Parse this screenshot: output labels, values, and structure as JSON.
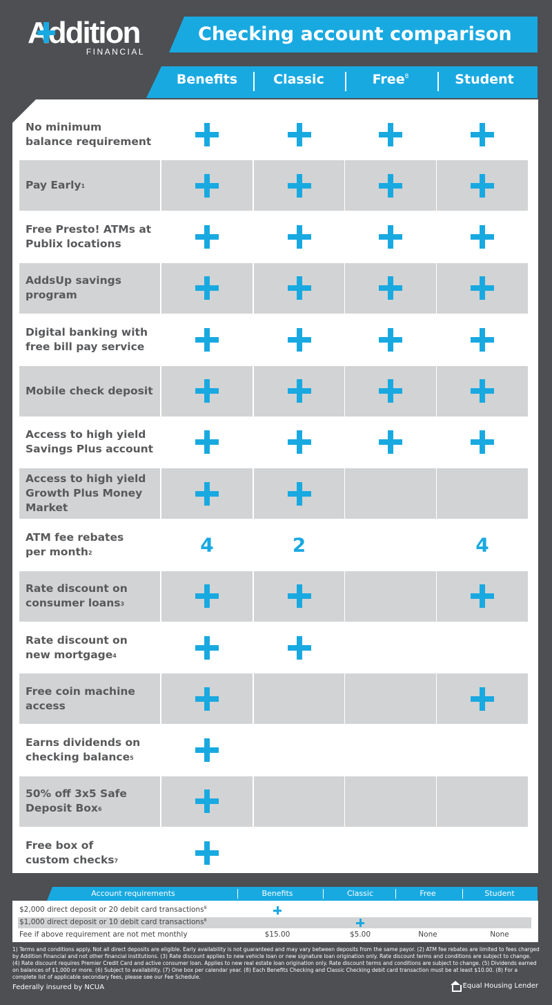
{
  "brand": {
    "logo_text": "Addition",
    "logo_sub": "FINANCIAL",
    "accent_color": "#19a9e1",
    "background_color": "#4d4f53",
    "shade_color": "#d1d3d4"
  },
  "title": "Checking account comparison",
  "columns": [
    {
      "label": "Benefits",
      "sup": ""
    },
    {
      "label": "Classic",
      "sup": ""
    },
    {
      "label": "Free",
      "sup": "8"
    },
    {
      "label": "Student",
      "sup": ""
    }
  ],
  "rows": [
    {
      "lines": [
        "No minimum",
        "balance requirement"
      ],
      "sup": "",
      "shaded": false,
      "values": [
        "plus",
        "plus",
        "plus",
        "plus"
      ]
    },
    {
      "lines": [
        "Pay Early"
      ],
      "sup": "1",
      "shaded": true,
      "values": [
        "plus",
        "plus",
        "plus",
        "plus"
      ]
    },
    {
      "lines": [
        "Free Presto! ATMs at",
        "Publix locations"
      ],
      "sup": "",
      "shaded": false,
      "values": [
        "plus",
        "plus",
        "plus",
        "plus"
      ]
    },
    {
      "lines": [
        "AddsUp savings",
        "program"
      ],
      "sup": "",
      "shaded": true,
      "values": [
        "plus",
        "plus",
        "plus",
        "plus"
      ]
    },
    {
      "lines": [
        "Digital banking with",
        "free bill pay service"
      ],
      "sup": "",
      "shaded": false,
      "values": [
        "plus",
        "plus",
        "plus",
        "plus"
      ]
    },
    {
      "lines": [
        "Mobile check deposit"
      ],
      "sup": "",
      "shaded": true,
      "values": [
        "plus",
        "plus",
        "plus",
        "plus"
      ]
    },
    {
      "lines": [
        "Access to high yield",
        "Savings Plus account"
      ],
      "sup": "",
      "shaded": false,
      "values": [
        "plus",
        "plus",
        "plus",
        "plus"
      ]
    },
    {
      "lines": [
        "Access to high yield",
        "Growth Plus Money",
        "Market"
      ],
      "sup": "",
      "shaded": true,
      "values": [
        "plus",
        "plus",
        "",
        ""
      ]
    },
    {
      "lines": [
        "ATM fee rebates",
        "per month"
      ],
      "sup": "2",
      "shaded": false,
      "values": [
        "4",
        "2",
        "",
        "4"
      ]
    },
    {
      "lines": [
        "Rate discount on",
        "consumer loans"
      ],
      "sup": "3",
      "shaded": true,
      "values": [
        "plus",
        "plus",
        "",
        "plus"
      ]
    },
    {
      "lines": [
        "Rate discount on",
        "new mortgage"
      ],
      "sup": "4",
      "shaded": false,
      "values": [
        "plus",
        "plus",
        "",
        ""
      ]
    },
    {
      "lines": [
        "Free coin machine",
        "access"
      ],
      "sup": "",
      "shaded": true,
      "values": [
        "plus",
        "",
        "",
        "plus"
      ]
    },
    {
      "lines": [
        "Earns dividends on",
        "checking balance"
      ],
      "sup": "5",
      "shaded": false,
      "values": [
        "plus",
        "",
        "",
        ""
      ]
    },
    {
      "lines": [
        "50% off 3x5 Safe",
        "Deposit Box"
      ],
      "sup": "6",
      "shaded": true,
      "values": [
        "plus",
        "",
        "",
        ""
      ]
    },
    {
      "lines": [
        "Free box of",
        "custom checks"
      ],
      "sup": "7",
      "shaded": false,
      "values": [
        "plus",
        "",
        "",
        ""
      ]
    }
  ],
  "requirements": {
    "headers": [
      "Account requirements",
      "Benefits",
      "Classic",
      "Free",
      "Student"
    ],
    "rows": [
      {
        "label": "$2,000 direct deposit or 20 debit card transactions",
        "sup": "8",
        "shaded": false,
        "values": [
          "plus",
          "",
          "",
          ""
        ]
      },
      {
        "label": "$1,000 direct deposit or 10 debit card transactions",
        "sup": "8",
        "shaded": true,
        "values": [
          "",
          "plus",
          "",
          ""
        ]
      },
      {
        "label": "Fee if above requirement are not met monthly",
        "sup": "",
        "shaded": false,
        "values": [
          "$15.00",
          "$5.00",
          "None",
          "None"
        ]
      }
    ]
  },
  "disclaimer": "1) Terms and conditions apply. Not all direct deposits are eligible. Early availability is not guaranteed and may vary between deposits from the same payor. (2) ATM fee rebates are limited to fees charged by Addition Financial and not other financial institutions. (3) Rate discount applies to new vehicle loan or new signature loan origination only. Rate discount terms and conditions are subject to change. (4) Rate discount requires Premier Credit Card and active consumer loan. Applies to new real estate loan origination only. Rate discount terms and conditions are subject to change. (5) Dividends earned on balances of $1,000 or more. (6) Subject to availability. (7) One box per calendar year. (8) Each Benefits Checking and Classic Checking debit card transaction must be at least $10.00. (8) For a complete list of applicable secondary fees, please see our Fee Schedule.",
  "footer": {
    "ncua": "Federally insured by NCUA",
    "equal_housing": "Equal Housing Lender",
    "equal_housing_icon": "house-icon"
  }
}
